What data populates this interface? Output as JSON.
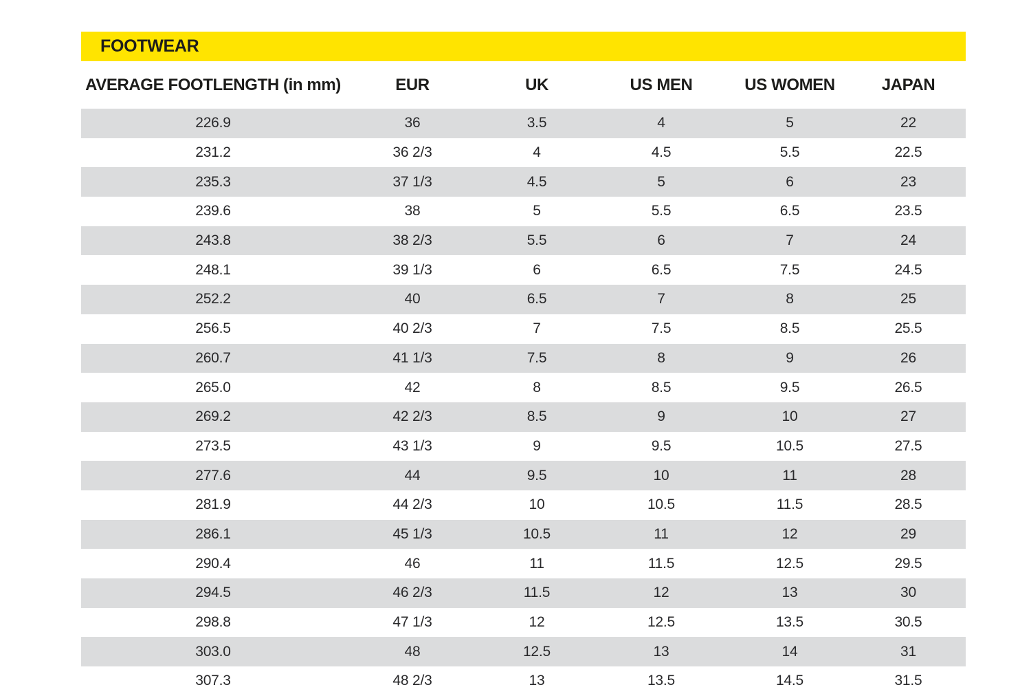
{
  "section": {
    "title": "FOOTWEAR"
  },
  "colors": {
    "accent_yellow": "#FFE400",
    "row_stripe_gray": "#DBDCDD",
    "value_text": "#29292B",
    "heading_text": "#1D1D1B"
  },
  "table": {
    "columns": [
      {
        "key": "footlength",
        "label": "AVERAGE FOOTLENGTH (in mm)"
      },
      {
        "key": "eur",
        "label": "EUR"
      },
      {
        "key": "uk",
        "label": "UK"
      },
      {
        "key": "us-men",
        "label": "US MEN"
      },
      {
        "key": "us-women",
        "label": "US WOMEN"
      },
      {
        "key": "japan",
        "label": "JAPAN"
      }
    ],
    "rows": [
      [
        "226.9",
        "36",
        "3.5",
        "4",
        "5",
        "22"
      ],
      [
        "231.2",
        "36 2/3",
        "4",
        "4.5",
        "5.5",
        "22.5"
      ],
      [
        "235.3",
        "37 1/3",
        "4.5",
        "5",
        "6",
        "23"
      ],
      [
        "239.6",
        "38",
        "5",
        "5.5",
        "6.5",
        "23.5"
      ],
      [
        "243.8",
        "38 2/3",
        "5.5",
        "6",
        "7",
        "24"
      ],
      [
        "248.1",
        "39 1/3",
        "6",
        "6.5",
        "7.5",
        "24.5"
      ],
      [
        "252.2",
        "40",
        "6.5",
        "7",
        "8",
        "25"
      ],
      [
        "256.5",
        "40 2/3",
        "7",
        "7.5",
        "8.5",
        "25.5"
      ],
      [
        "260.7",
        "41 1/3",
        "7.5",
        "8",
        "9",
        "26"
      ],
      [
        "265.0",
        "42",
        "8",
        "8.5",
        "9.5",
        "26.5"
      ],
      [
        "269.2",
        "42 2/3",
        "8.5",
        "9",
        "10",
        "27"
      ],
      [
        "273.5",
        "43 1/3",
        "9",
        "9.5",
        "10.5",
        "27.5"
      ],
      [
        "277.6",
        "44",
        "9.5",
        "10",
        "11",
        "28"
      ],
      [
        "281.9",
        "44 2/3",
        "10",
        "10.5",
        "11.5",
        "28.5"
      ],
      [
        "286.1",
        "45 1/3",
        "10.5",
        "11",
        "12",
        "29"
      ],
      [
        "290.4",
        "46",
        "11",
        "11.5",
        "12.5",
        "29.5"
      ],
      [
        "294.5",
        "46 2/3",
        "11.5",
        "12",
        "13",
        "30"
      ],
      [
        "298.8",
        "47 1/3",
        "12",
        "12.5",
        "13.5",
        "30.5"
      ],
      [
        "303.0",
        "48",
        "12.5",
        "13",
        "14",
        "31"
      ],
      [
        "307.3",
        "48 2/3",
        "13",
        "13.5",
        "14.5",
        "31.5"
      ]
    ]
  }
}
